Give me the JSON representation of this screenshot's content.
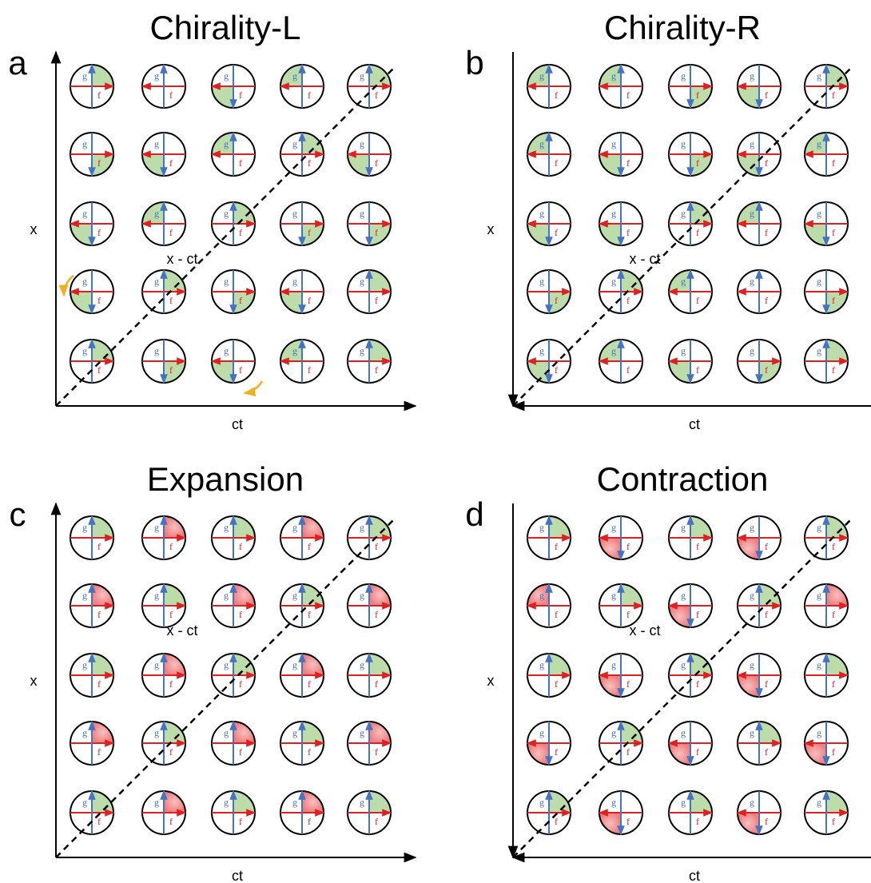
{
  "panels": [
    {
      "letter": "a",
      "title": "Chirality-L",
      "x_label": "x",
      "t_label": "ct",
      "diagonal_label": "x - ct",
      "f": "f",
      "g": "g",
      "arrow_at": "ends",
      "cells": [
        [
          "ne g",
          "none",
          "sw g",
          "nw g",
          "ne g"
        ],
        [
          "se g",
          "sw g",
          "nw g",
          "ne g",
          "sw g"
        ],
        [
          "sw g",
          "nw g",
          "ne g",
          "se g",
          "se g"
        ],
        [
          "sw g",
          "ne g",
          "se g",
          "sw g",
          "ne g"
        ],
        [
          "ne g",
          "se g",
          "sw g",
          "nw g",
          "ne g"
        ]
      ]
    },
    {
      "letter": "b",
      "title": "Chirality-R",
      "x_label": "x",
      "t_label": "ct",
      "diagonal_label": "x - ct",
      "f": "f",
      "g": "g",
      "arrow_at": "origin",
      "cells": [
        [
          "nw g",
          "nw g",
          "se g",
          "sw g",
          "ne g"
        ],
        [
          "nw g",
          "sw g",
          "se g",
          "sw g",
          "nw g"
        ],
        [
          "sw g",
          "sw g",
          "ne g",
          "nw g",
          "sw g"
        ],
        [
          "se g",
          "ne g",
          "nw g",
          "none",
          "se g"
        ],
        [
          "sw g",
          "nw g",
          "sw g",
          "se g",
          "ne g"
        ]
      ]
    },
    {
      "letter": "c",
      "title": "Expansion",
      "x_label": "x",
      "t_label": "ct",
      "diagonal_label": "x - ct",
      "f": "f",
      "g": "g",
      "arrow_at": "ends",
      "cells": [
        [
          "ne g",
          "ne r",
          "ne g",
          "ne r",
          "ne g"
        ],
        [
          "ne r",
          "ne g",
          "ne r",
          "ne g",
          "ne r"
        ],
        [
          "ne g",
          "ne r",
          "ne g",
          "ne r",
          "ne g"
        ],
        [
          "ne r",
          "ne g",
          "ne r",
          "ne g",
          "ne r"
        ],
        [
          "ne g",
          "ne r",
          "ne g",
          "ne r",
          "ne g"
        ]
      ]
    },
    {
      "letter": "d",
      "title": "Contraction",
      "x_label": "x",
      "t_label": "ct",
      "diagonal_label": "x - ct",
      "f": "f",
      "g": "g",
      "arrow_at": "origin",
      "cells": [
        [
          "ne g",
          "sw r",
          "ne g",
          "sw r",
          "ne g"
        ],
        [
          "nw r",
          "ne g",
          "sw r",
          "ne g",
          "ne r"
        ],
        [
          "ne g",
          "sw r",
          "ne g",
          "sw r",
          "ne g"
        ],
        [
          "sw r",
          "ne g",
          "sw r",
          "ne g",
          "sw r"
        ],
        [
          "ne g",
          "sw r",
          "ne g",
          "sw r",
          "ne g"
        ]
      ]
    }
  ]
}
